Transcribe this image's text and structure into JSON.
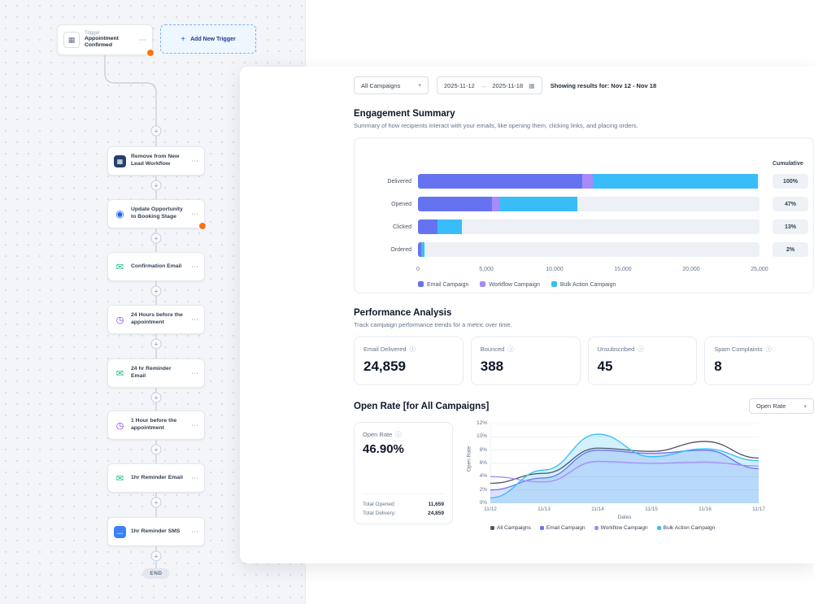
{
  "icons": {
    "calendar": "▦",
    "ellipsis": "⋯",
    "plus": "+",
    "chevron_down": "▾",
    "arrow_right": "→",
    "info": "ⓘ",
    "grid": "▦",
    "target": "◉",
    "email": "✉",
    "clock": "◷",
    "dots": "…"
  },
  "workflow": {
    "trigger": {
      "kicker": "Trigger",
      "title": "Appointment Confirmed"
    },
    "add_trigger_label": "Add New Trigger",
    "nodes": [
      {
        "title": "Remove from New Lead Workflow"
      },
      {
        "title": "Update Opportunity to Booking Stage"
      },
      {
        "title": "Confirmation Email"
      },
      {
        "title": "24 Hours before the appointment"
      },
      {
        "title": "24 hr Reminder Email"
      },
      {
        "title": "1 Hour before the appointment"
      },
      {
        "title": "1hr Reminder Email"
      },
      {
        "title": "1hr Reminder SMS"
      }
    ],
    "end_label": "END"
  },
  "dashboard": {
    "filters": {
      "campaign_select": "All Campaigns",
      "date_start": "2025-11-12",
      "date_end": "2025-11-18",
      "showing_results": "Showing results for: Nov 12 - Nov 18"
    },
    "engagement": {
      "title": "Engagement Summary",
      "subtitle": "Summary of how recipients interact with your emails, like opening them, clicking links, and placing orders.",
      "cumulative_label": "Cumulative"
    },
    "performance": {
      "title": "Performance Analysis",
      "subtitle": "Track campaign performance trends for a metric over time.",
      "stats": [
        {
          "label": "Email Delivered",
          "value": "24,859"
        },
        {
          "label": "Bounced",
          "value": "388"
        },
        {
          "label": "Unsubscribed",
          "value": "45"
        },
        {
          "label": "Spam Complaints",
          "value": "8"
        }
      ]
    },
    "open_rate": {
      "title": "Open Rate [for All Campaigns]",
      "metric_select": "Open Rate",
      "card": {
        "label": "Open Rate",
        "value": "46.90%",
        "total_opened_label": "Total Opened:",
        "total_opened": "11,659",
        "total_delivery_label": "Total Delivery:",
        "total_delivery": "24,859"
      }
    }
  },
  "chart_data": [
    {
      "type": "bar",
      "orientation": "horizontal",
      "title": "Engagement Summary",
      "categories": [
        "Delivered",
        "Opened",
        "Clicked",
        "Ordered"
      ],
      "series": [
        {
          "name": "Email Campaign",
          "color": "#6673f1",
          "values": [
            12000,
            5400,
            1400,
            250
          ]
        },
        {
          "name": "Workflow Campaign",
          "color": "#a78bfa",
          "values": [
            800,
            559,
            0,
            0
          ]
        },
        {
          "name": "Bulk Action Campaign",
          "color": "#38bdf8",
          "values": [
            12059,
            5700,
            1832,
            247
          ]
        }
      ],
      "xlim": [
        0,
        25000
      ],
      "xticks": [
        "0",
        "5,000",
        "10,000",
        "15,000",
        "20,000",
        "25,000"
      ],
      "cumulative": [
        "100%",
        "47%",
        "13%",
        "2%"
      ],
      "legend_position": "bottom"
    },
    {
      "type": "area",
      "title": "Open Rate [for All Campaigns]",
      "x": [
        "11/12",
        "11/13",
        "11/14",
        "11/15",
        "11/16",
        "11/17"
      ],
      "xlabel": "Dates",
      "ylabel": "Open Rate",
      "ylim": [
        0,
        12
      ],
      "yticks": [
        "0%",
        "2%",
        "4%",
        "6%",
        "8%",
        "10%",
        "12%"
      ],
      "series": [
        {
          "name": "All Campaigns",
          "color": "#4b5563",
          "values": [
            3.0,
            4.5,
            8.3,
            7.8,
            9.3,
            6.8
          ],
          "fill": false
        },
        {
          "name": "Email Campaign",
          "color": "#6673f1",
          "values": [
            2.0,
            3.8,
            8.0,
            7.5,
            8.0,
            5.2
          ],
          "fill": true
        },
        {
          "name": "Workflow Campaign",
          "color": "#a78bfa",
          "values": [
            4.0,
            3.2,
            6.3,
            6.0,
            6.2,
            5.6
          ],
          "fill": false
        },
        {
          "name": "Bulk Action Campaign",
          "color": "#38bdf8",
          "values": [
            0.8,
            5.0,
            10.4,
            7.0,
            8.2,
            6.4
          ],
          "fill": true
        }
      ],
      "legend_position": "bottom"
    }
  ]
}
